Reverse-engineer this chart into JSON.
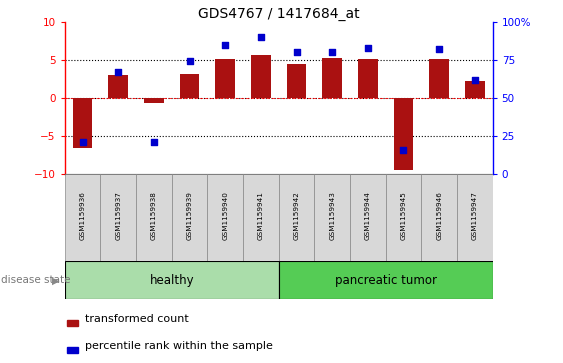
{
  "title": "GDS4767 / 1417684_at",
  "samples": [
    "GSM1159936",
    "GSM1159937",
    "GSM1159938",
    "GSM1159939",
    "GSM1159940",
    "GSM1159941",
    "GSM1159942",
    "GSM1159943",
    "GSM1159944",
    "GSM1159945",
    "GSM1159946",
    "GSM1159947"
  ],
  "bar_values": [
    -6.5,
    3.0,
    -0.6,
    3.2,
    5.1,
    5.6,
    4.5,
    5.2,
    5.1,
    -9.5,
    5.1,
    2.2
  ],
  "dot_values": [
    21,
    67,
    21,
    74,
    85,
    90,
    80,
    80,
    83,
    16,
    82,
    62
  ],
  "bar_color": "#AA1111",
  "dot_color": "#0000CC",
  "ylim_left": [
    -10,
    10
  ],
  "ylim_right": [
    0,
    100
  ],
  "yticks_left": [
    -10,
    -5,
    0,
    5,
    10
  ],
  "ytick_labels_right": [
    "0",
    "25",
    "50",
    "75",
    "100%"
  ],
  "healthy_color": "#AADDAA",
  "tumor_color": "#55CC55",
  "disease_state_label": "disease state",
  "legend_bar_label": "transformed count",
  "legend_dot_label": "percentile rank within the sample",
  "bg_color": "white",
  "left_spine_color": "red",
  "right_spine_color": "blue"
}
